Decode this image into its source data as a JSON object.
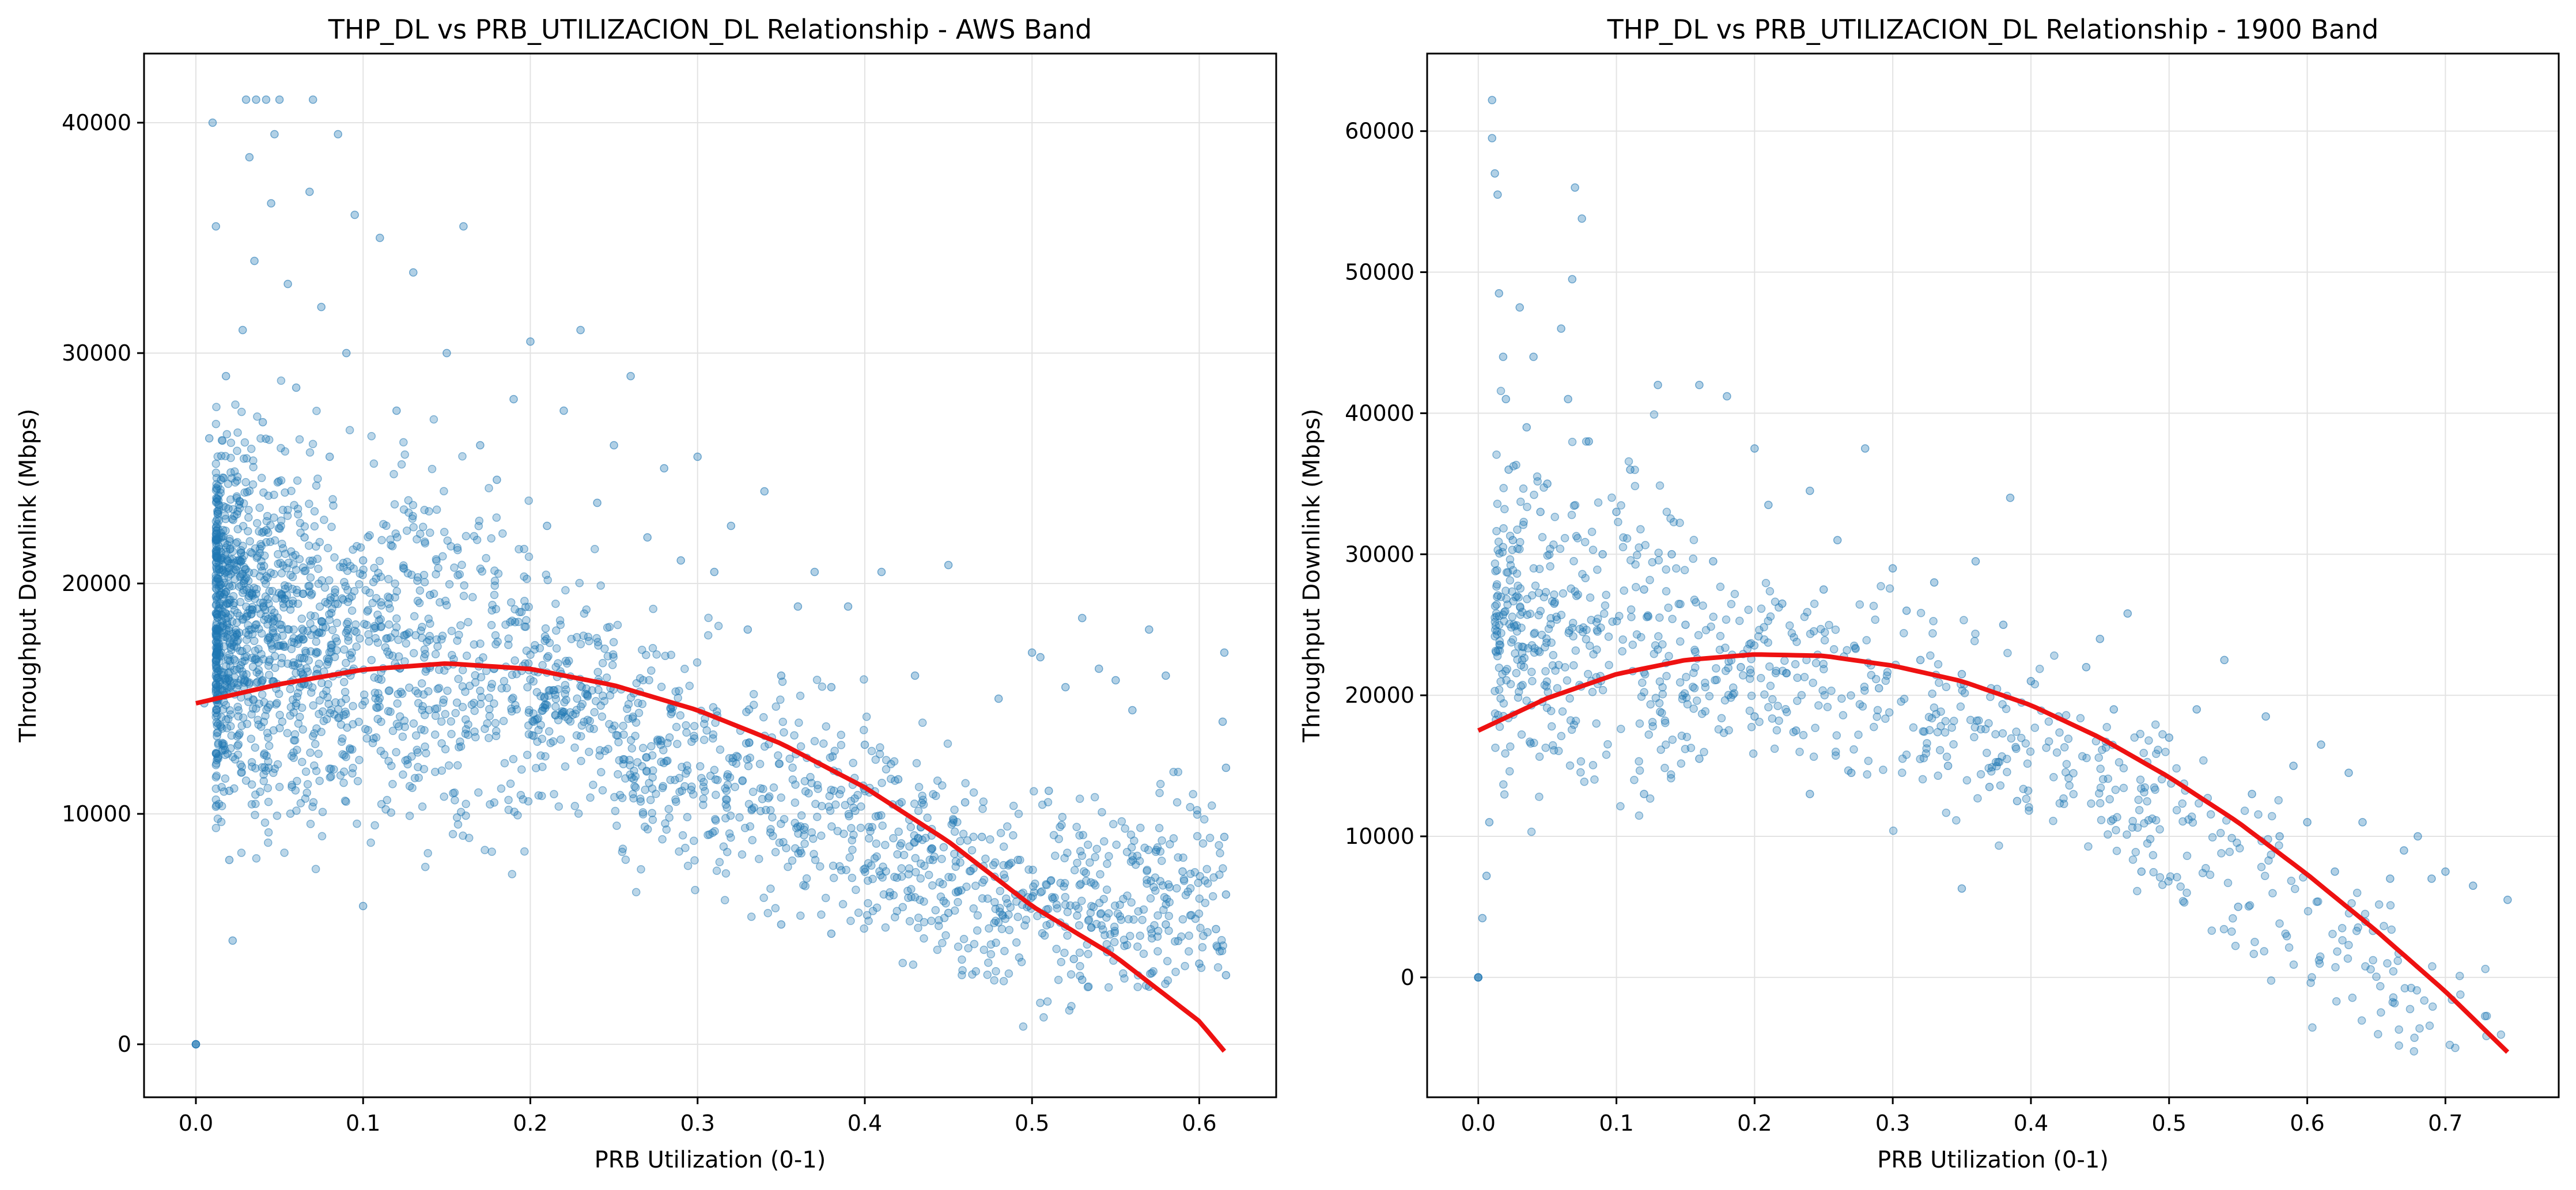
{
  "chart_data": [
    {
      "type": "scatter",
      "title": "THP_DL vs PRB_UTILIZACION_DL Relationship - AWS Band",
      "xlabel": "PRB Utilization (0-1)",
      "ylabel": "Throughput Downlink (Mbps)",
      "xlim": [
        -0.031,
        0.646
      ],
      "ylim": [
        -2300,
        43000
      ],
      "xticks": [
        0.0,
        0.1,
        0.2,
        0.3,
        0.4,
        0.5,
        0.6
      ],
      "xtick_labels": [
        "0.0",
        "0.1",
        "0.2",
        "0.3",
        "0.4",
        "0.5",
        "0.6"
      ],
      "yticks": [
        0,
        10000,
        20000,
        30000,
        40000
      ],
      "ytick_labels": [
        "0",
        "10000",
        "20000",
        "30000",
        "40000"
      ],
      "grid": true,
      "point_color": "#1f77b4",
      "fit_color": "#ee1111",
      "scatter_points": [
        [
          0.0,
          0
        ],
        [
          0.0,
          0
        ],
        [
          0.0,
          0
        ],
        [
          0.005,
          14800
        ],
        [
          0.008,
          26300
        ],
        [
          0.01,
          40000
        ],
        [
          0.012,
          35500
        ],
        [
          0.015,
          24500
        ],
        [
          0.018,
          29000
        ],
        [
          0.02,
          11000
        ],
        [
          0.02,
          8000
        ],
        [
          0.022,
          4500
        ],
        [
          0.025,
          21000
        ],
        [
          0.028,
          31000
        ],
        [
          0.03,
          41000
        ],
        [
          0.032,
          38500
        ],
        [
          0.035,
          34000
        ],
        [
          0.036,
          41000
        ],
        [
          0.04,
          27000
        ],
        [
          0.042,
          41000
        ],
        [
          0.045,
          36500
        ],
        [
          0.047,
          39500
        ],
        [
          0.05,
          41000
        ],
        [
          0.055,
          33000
        ],
        [
          0.06,
          28500
        ],
        [
          0.065,
          22000
        ],
        [
          0.068,
          37000
        ],
        [
          0.07,
          41000
        ],
        [
          0.075,
          32000
        ],
        [
          0.08,
          25500
        ],
        [
          0.085,
          39500
        ],
        [
          0.09,
          30000
        ],
        [
          0.095,
          36000
        ],
        [
          0.1,
          21000
        ],
        [
          0.1,
          6000
        ],
        [
          0.11,
          35000
        ],
        [
          0.12,
          27500
        ],
        [
          0.13,
          33500
        ],
        [
          0.14,
          19500
        ],
        [
          0.15,
          30000
        ],
        [
          0.16,
          35500
        ],
        [
          0.17,
          26000
        ],
        [
          0.18,
          24500
        ],
        [
          0.19,
          28000
        ],
        [
          0.2,
          30500
        ],
        [
          0.21,
          22500
        ],
        [
          0.22,
          27500
        ],
        [
          0.23,
          31000
        ],
        [
          0.24,
          23500
        ],
        [
          0.25,
          26000
        ],
        [
          0.26,
          29000
        ],
        [
          0.27,
          22000
        ],
        [
          0.28,
          25000
        ],
        [
          0.29,
          21000
        ],
        [
          0.3,
          25500
        ],
        [
          0.31,
          20500
        ],
        [
          0.32,
          22500
        ],
        [
          0.33,
          18000
        ],
        [
          0.34,
          24000
        ],
        [
          0.35,
          16000
        ],
        [
          0.36,
          19000
        ],
        [
          0.37,
          20500
        ],
        [
          0.38,
          15500
        ],
        [
          0.39,
          19000
        ],
        [
          0.4,
          13000
        ],
        [
          0.41,
          20500
        ],
        [
          0.42,
          11500
        ],
        [
          0.43,
          16000
        ],
        [
          0.44,
          8500
        ],
        [
          0.45,
          20800
        ],
        [
          0.46,
          10500
        ],
        [
          0.47,
          9000
        ],
        [
          0.48,
          15000
        ],
        [
          0.49,
          6500
        ],
        [
          0.5,
          17000
        ],
        [
          0.505,
          16800
        ],
        [
          0.51,
          11000
        ],
        [
          0.52,
          15500
        ],
        [
          0.53,
          18500
        ],
        [
          0.54,
          16300
        ],
        [
          0.55,
          15800
        ],
        [
          0.56,
          14500
        ],
        [
          0.57,
          18000
        ],
        [
          0.58,
          16000
        ],
        [
          0.59,
          7500
        ],
        [
          0.6,
          3500
        ],
        [
          0.61,
          5000
        ],
        [
          0.614,
          14000
        ],
        [
          0.615,
          17000
        ],
        [
          0.615,
          9000
        ],
        [
          0.616,
          12000
        ],
        [
          0.616,
          6500
        ],
        [
          0.616,
          3000
        ],
        [
          0.525,
          3700
        ],
        [
          0.53,
          2800
        ],
        [
          0.545,
          4000
        ],
        [
          0.57,
          2500
        ],
        [
          0.58,
          5200
        ],
        [
          0.35,
          5200
        ],
        [
          0.38,
          4800
        ],
        [
          0.45,
          5700
        ]
      ],
      "fit_curve": [
        [
          0.0,
          14800
        ],
        [
          0.05,
          15630
        ],
        [
          0.1,
          16260
        ],
        [
          0.15,
          16530
        ],
        [
          0.2,
          16290
        ],
        [
          0.25,
          15580
        ],
        [
          0.3,
          14500
        ],
        [
          0.35,
          13050
        ],
        [
          0.4,
          11150
        ],
        [
          0.45,
          8800
        ],
        [
          0.5,
          6000
        ],
        [
          0.55,
          3800
        ],
        [
          0.6,
          1000
        ],
        [
          0.615,
          -300
        ]
      ]
    },
    {
      "type": "scatter",
      "title": "THP_DL vs PRB_UTILIZACION_DL Relationship - 1900 Band",
      "xlabel": "PRB Utilization (0-1)",
      "ylabel": "Throughput Downlink (Mbps)",
      "xlim": [
        -0.037,
        0.782
      ],
      "ylim": [
        -8500,
        65500
      ],
      "xticks": [
        0.0,
        0.1,
        0.2,
        0.3,
        0.4,
        0.5,
        0.6,
        0.7
      ],
      "xtick_labels": [
        "0.0",
        "0.1",
        "0.2",
        "0.3",
        "0.4",
        "0.5",
        "0.6",
        "0.7"
      ],
      "yticks": [
        0,
        10000,
        20000,
        30000,
        40000,
        50000,
        60000
      ],
      "ytick_labels": [
        "0",
        "10000",
        "20000",
        "30000",
        "40000",
        "50000",
        "60000"
      ],
      "grid": true,
      "point_color": "#1f77b4",
      "fit_color": "#ee1111",
      "scatter_points": [
        [
          0.0,
          0
        ],
        [
          0.0,
          0
        ],
        [
          0.0,
          0
        ],
        [
          0.003,
          4200
        ],
        [
          0.006,
          7200
        ],
        [
          0.008,
          11000
        ],
        [
          0.01,
          62200
        ],
        [
          0.01,
          59500
        ],
        [
          0.012,
          57000
        ],
        [
          0.014,
          55500
        ],
        [
          0.015,
          48500
        ],
        [
          0.018,
          44000
        ],
        [
          0.02,
          41000
        ],
        [
          0.022,
          36000
        ],
        [
          0.025,
          31000
        ],
        [
          0.03,
          47500
        ],
        [
          0.035,
          39000
        ],
        [
          0.04,
          44000
        ],
        [
          0.045,
          33000
        ],
        [
          0.05,
          35000
        ],
        [
          0.055,
          26500
        ],
        [
          0.06,
          46000
        ],
        [
          0.065,
          41000
        ],
        [
          0.068,
          49500
        ],
        [
          0.07,
          56000
        ],
        [
          0.075,
          53800
        ],
        [
          0.08,
          38000
        ],
        [
          0.09,
          30000
        ],
        [
          0.1,
          33000
        ],
        [
          0.11,
          36000
        ],
        [
          0.12,
          27500
        ],
        [
          0.13,
          42000
        ],
        [
          0.14,
          30000
        ],
        [
          0.15,
          25000
        ],
        [
          0.16,
          42000
        ],
        [
          0.17,
          29500
        ],
        [
          0.18,
          41200
        ],
        [
          0.19,
          22000
        ],
        [
          0.2,
          37500
        ],
        [
          0.21,
          33500
        ],
        [
          0.22,
          26500
        ],
        [
          0.23,
          17500
        ],
        [
          0.24,
          34500
        ],
        [
          0.25,
          27500
        ],
        [
          0.26,
          31000
        ],
        [
          0.27,
          14500
        ],
        [
          0.28,
          37500
        ],
        [
          0.29,
          20500
        ],
        [
          0.3,
          29000
        ],
        [
          0.31,
          26000
        ],
        [
          0.32,
          22500
        ],
        [
          0.33,
          28000
        ],
        [
          0.34,
          15000
        ],
        [
          0.35,
          21500
        ],
        [
          0.36,
          29500
        ],
        [
          0.37,
          13500
        ],
        [
          0.38,
          25000
        ],
        [
          0.385,
          34000
        ],
        [
          0.39,
          12500
        ],
        [
          0.4,
          21000
        ],
        [
          0.42,
          18500
        ],
        [
          0.44,
          22000
        ],
        [
          0.45,
          24000
        ],
        [
          0.46,
          19000
        ],
        [
          0.47,
          25800
        ],
        [
          0.48,
          7500
        ],
        [
          0.5,
          17000
        ],
        [
          0.52,
          19000
        ],
        [
          0.54,
          22500
        ],
        [
          0.55,
          5000
        ],
        [
          0.56,
          13000
        ],
        [
          0.57,
          18500
        ],
        [
          0.58,
          10000
        ],
        [
          0.59,
          15000
        ],
        [
          0.6,
          11000
        ],
        [
          0.61,
          16500
        ],
        [
          0.62,
          7500
        ],
        [
          0.63,
          14500
        ],
        [
          0.64,
          11000
        ],
        [
          0.66,
          7000
        ],
        [
          0.67,
          9000
        ],
        [
          0.68,
          10000
        ],
        [
          0.69,
          7000
        ],
        [
          0.7,
          7500
        ],
        [
          0.72,
          6500
        ],
        [
          0.745,
          5500
        ],
        [
          0.35,
          6300
        ],
        [
          0.12,
          13000
        ],
        [
          0.16,
          15500
        ],
        [
          0.2,
          18500
        ],
        [
          0.24,
          13000
        ]
      ],
      "fit_curve": [
        [
          0.0,
          17500
        ],
        [
          0.05,
          19800
        ],
        [
          0.1,
          21500
        ],
        [
          0.15,
          22500
        ],
        [
          0.2,
          22900
        ],
        [
          0.25,
          22800
        ],
        [
          0.3,
          22100
        ],
        [
          0.35,
          21000
        ],
        [
          0.4,
          19300
        ],
        [
          0.45,
          17000
        ],
        [
          0.5,
          14200
        ],
        [
          0.55,
          11000
        ],
        [
          0.6,
          7300
        ],
        [
          0.65,
          3300
        ],
        [
          0.7,
          -1000
        ],
        [
          0.745,
          -5300
        ]
      ]
    }
  ]
}
